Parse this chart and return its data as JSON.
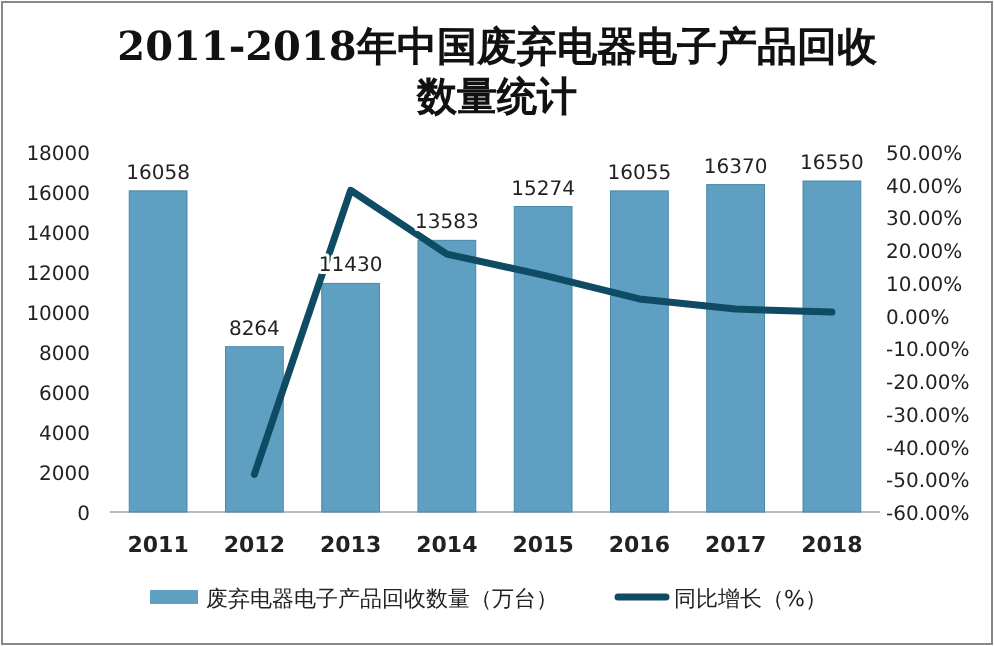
{
  "chart_data": {
    "type": "bar",
    "title": "2011-2018年中国废弃电器电子产品回收数量统计",
    "categories": [
      "2011",
      "2012",
      "2013",
      "2014",
      "2015",
      "2016",
      "2017",
      "2018"
    ],
    "series": [
      {
        "name": "废弃电器电子产品回收数量（万台）",
        "color": "#5f9fc2",
        "values": [
          16058,
          8264,
          11430,
          13583,
          15274,
          16055,
          16370,
          16550
        ],
        "value_labels": [
          "16058",
          "8264",
          "11430",
          "13583",
          "15274",
          "16055",
          "16370",
          "16550"
        ]
      },
      {
        "name": "同比增长（%）",
        "color": "#0f4c64",
        "type": "line",
        "axis": "y2",
        "values": [
          null,
          -48.5,
          38.3,
          18.8,
          12.4,
          5.1,
          2.0,
          1.1
        ]
      }
    ],
    "ylim": [
      0,
      18000
    ],
    "yticks": [
      0,
      2000,
      4000,
      6000,
      8000,
      10000,
      12000,
      14000,
      16000,
      18000
    ],
    "y2lim": [
      -60,
      50
    ],
    "y2ticks": [
      {
        "value": -60,
        "label": "-60.00%"
      },
      {
        "value": -50,
        "label": "-50.00%"
      },
      {
        "value": -40,
        "label": "-40.00%"
      },
      {
        "value": -30,
        "label": "-30.00%"
      },
      {
        "value": -20,
        "label": "-20.00%"
      },
      {
        "value": -10,
        "label": "-10.00%"
      },
      {
        "value": 0,
        "label": "0.00%"
      },
      {
        "value": 10,
        "label": "10.00%"
      },
      {
        "value": 20,
        "label": "20.00%"
      },
      {
        "value": 30,
        "label": "30.00%"
      },
      {
        "value": 40,
        "label": "40.00%"
      },
      {
        "value": 50,
        "label": "50.00%"
      }
    ],
    "legend": "bottom"
  }
}
